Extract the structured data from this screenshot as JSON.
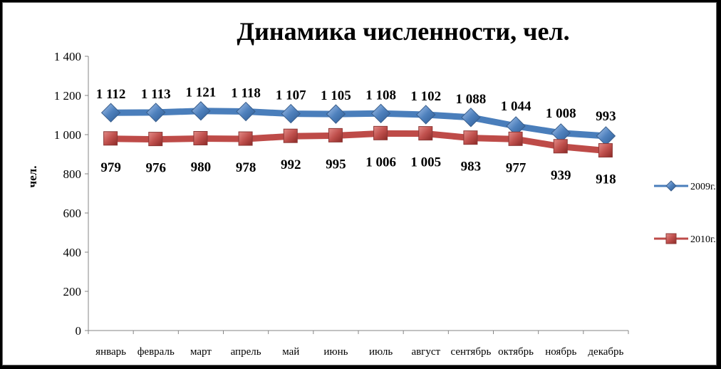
{
  "chart_data": {
    "type": "line",
    "title": "Динамика численности, чел.",
    "ylabel": "чел.",
    "xlabel": "",
    "categories": [
      "январь",
      "февраль",
      "март",
      "апрель",
      "май",
      "июнь",
      "июль",
      "август",
      "сентябрь",
      "октябрь",
      "ноябрь",
      "декабрь"
    ],
    "ylim": [
      0,
      1400
    ],
    "yticks": [
      0,
      200,
      400,
      600,
      800,
      1000,
      1200,
      1400
    ],
    "ytick_labels": [
      "0",
      "200",
      "400",
      "600",
      "800",
      "1 000",
      "1 200",
      "1 400"
    ],
    "grid": false,
    "legend_position": "right",
    "series": [
      {
        "name": "2009г.",
        "color": "#4a7ebb",
        "marker": "diamond",
        "values": [
          1112,
          1113,
          1121,
          1118,
          1107,
          1105,
          1108,
          1102,
          1088,
          1044,
          1008,
          993
        ],
        "labels": [
          "1 112",
          "1 113",
          "1 121",
          "1 118",
          "1 107",
          "1 105",
          "1 108",
          "1 102",
          "1 088",
          "1 044",
          "1 008",
          "993"
        ]
      },
      {
        "name": "2010г.",
        "color": "#be4b48",
        "marker": "square",
        "values": [
          979,
          976,
          980,
          978,
          992,
          995,
          1006,
          1005,
          983,
          977,
          939,
          918
        ],
        "labels": [
          "979",
          "976",
          "980",
          "978",
          "992",
          "995",
          "1 006",
          "1 005",
          "983",
          "977",
          "939",
          "918"
        ]
      }
    ]
  }
}
